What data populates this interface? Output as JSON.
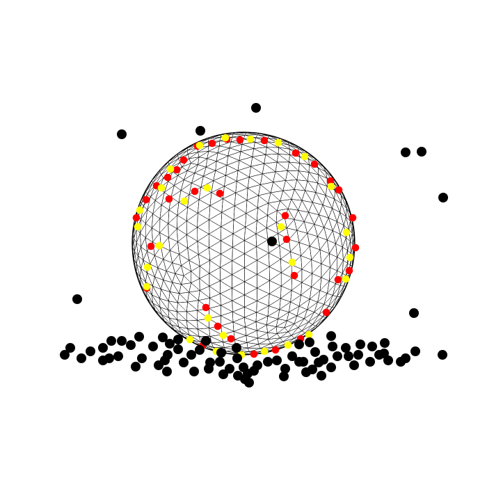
{
  "scene": {
    "background": "#ffffff",
    "sphere": {
      "fill": "#ffffff",
      "mesh_color": "#000000",
      "mesh_style": "geodesic-triangulated"
    },
    "particle_colors": {
      "free": "#000000",
      "type_a": "#ff0000",
      "type_b": "#ffff00"
    },
    "counts": {
      "free_particles": 108,
      "surface_red": 36,
      "surface_yellow": 34
    }
  }
}
